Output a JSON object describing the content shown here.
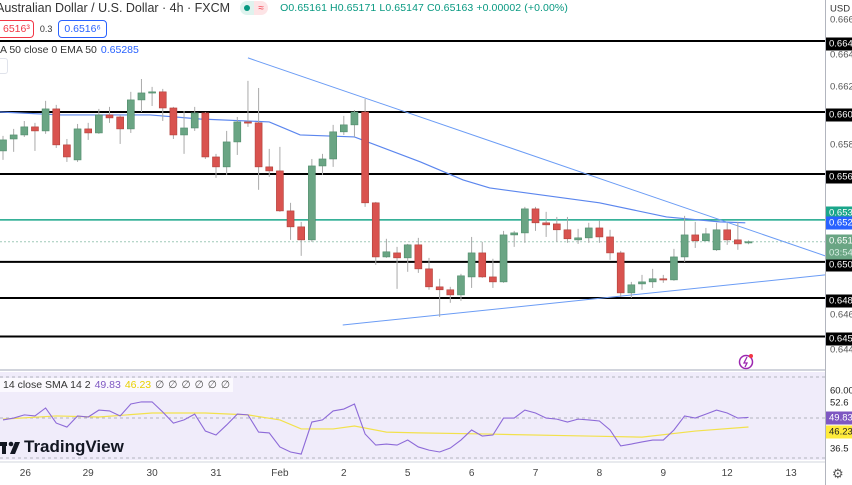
{
  "header": {
    "title": "Australian Dollar / U.S. Dollar · 4h · FXCM",
    "ohlc": "O0.65161 H0.65171 L0.65147 C0.65163 +0.00002 (+0.00%)",
    "status_dot_color": "#089981",
    "status_icon": "≈",
    "sell_price": "6516³",
    "spread": "0.3",
    "buy_price": "0.6516⁶"
  },
  "ema_legend": {
    "label": "A 50 close 0 EMA 50",
    "value": "0.65285"
  },
  "rsi_legend": {
    "label": "14 close SMA 14 2",
    "rsi": "49.83",
    "sma": "46.23",
    "empties": [
      "∅",
      "∅",
      "∅",
      "∅",
      "∅",
      "∅"
    ]
  },
  "logo": {
    "text": "TradingView"
  },
  "price_axis": {
    "currency": "USD",
    "ticks": [
      {
        "t": "0.666",
        "p": 0.66594
      },
      {
        "t": "0.664",
        "p": 0.66369
      },
      {
        "t": "0.662",
        "p": 0.66162
      },
      {
        "t": "0.658",
        "p": 0.65788
      },
      {
        "t": "0.646",
        "p": 0.64691
      },
      {
        "t": "0.644",
        "p": 0.64465
      }
    ],
    "levels": [
      {
        "t": "0.664",
        "p": 0.66458,
        "color": "#000000"
      },
      {
        "t": "0.660",
        "p": 0.66,
        "color": "#000000"
      },
      {
        "t": "0.656",
        "p": 0.656,
        "color": "#000000"
      },
      {
        "t": "0.650",
        "p": 0.65033,
        "color": "#000000"
      },
      {
        "t": "0.648",
        "p": 0.648,
        "color": "#000000"
      },
      {
        "t": "0.645",
        "p": 0.64552,
        "color": "#000000"
      },
      {
        "t": "0.653",
        "p": 0.65304,
        "color": "#1aa68a"
      }
    ],
    "ema_tag": {
      "t": "0.652",
      "p": 0.65285,
      "color": "#2962ff"
    },
    "last_tag": {
      "t": "0.651",
      "countdown": "03:54",
      "p": 0.65163,
      "color": "#6aa584"
    }
  },
  "rsi_axis": {
    "ticks": [
      {
        "t": "60.00",
        "v": 60
      },
      {
        "t": "52.6",
        "v": 55.2
      },
      {
        "t": "36.5",
        "v": 38
      }
    ],
    "rsi_tag": {
      "t": "49.83",
      "color": "#7e57c2"
    },
    "sma_tag": {
      "t": "46.23",
      "color": "#ffeb3b"
    }
  },
  "time_axis": [
    {
      "t": "26",
      "i": 2.1
    },
    {
      "t": "29",
      "i": 8
    },
    {
      "t": "30",
      "i": 14
    },
    {
      "t": "31",
      "i": 20
    },
    {
      "t": "Feb",
      "i": 26
    },
    {
      "t": "2",
      "i": 32
    },
    {
      "t": "5",
      "i": 38
    },
    {
      "t": "6",
      "i": 44
    },
    {
      "t": "7",
      "i": 50
    },
    {
      "t": "8",
      "i": 56
    },
    {
      "t": "9",
      "i": 62
    },
    {
      "t": "12",
      "i": 68
    },
    {
      "t": "13",
      "i": 74
    }
  ],
  "colors": {
    "up": "#6aa584",
    "down": "#d9534f",
    "ema": "#5b86ee",
    "trendline": "#6b9cf5",
    "rsi": "#8d6ad8",
    "rsi_sma": "#f2e14c"
  },
  "chart_data": {
    "type": "candlestick",
    "symbol": "AUDUSD",
    "timeframe": "4h",
    "ohlc": [
      [
        0.65749,
        0.65846,
        0.65691,
        0.6582
      ],
      [
        0.65826,
        0.65891,
        0.65743,
        0.65852
      ],
      [
        0.65852,
        0.65942,
        0.65839,
        0.65904
      ],
      [
        0.65904,
        0.6593,
        0.65749,
        0.65878
      ],
      [
        0.65878,
        0.66072,
        0.65859,
        0.6602
      ],
      [
        0.6602,
        0.66046,
        0.65768,
        0.65788
      ],
      [
        0.65788,
        0.65826,
        0.65678,
        0.6571
      ],
      [
        0.65691,
        0.65923,
        0.65678,
        0.65891
      ],
      [
        0.65891,
        0.6593,
        0.6582,
        0.65865
      ],
      [
        0.65865,
        0.6602,
        0.65859,
        0.65981
      ],
      [
        0.65981,
        0.66033,
        0.6593,
        0.65962
      ],
      [
        0.65968,
        0.65981,
        0.65794,
        0.65891
      ],
      [
        0.65891,
        0.6613,
        0.65865,
        0.66078
      ],
      [
        0.66078,
        0.66213,
        0.66,
        0.66123
      ],
      [
        0.66123,
        0.66162,
        0.66039,
        0.6613
      ],
      [
        0.6613,
        0.66149,
        0.65942,
        0.66026
      ],
      [
        0.66026,
        0.66033,
        0.65826,
        0.65852
      ],
      [
        0.65852,
        0.66007,
        0.6573,
        0.65897
      ],
      [
        0.65897,
        0.66033,
        0.65878,
        0.65994
      ],
      [
        0.65994,
        0.66,
        0.65697,
        0.6571
      ],
      [
        0.6571,
        0.6573,
        0.65575,
        0.65646
      ],
      [
        0.65646,
        0.65878,
        0.65594,
        0.65807
      ],
      [
        0.65807,
        0.65968,
        0.65723,
        0.65936
      ],
      [
        0.65936,
        0.66201,
        0.65904,
        0.6593
      ],
      [
        0.6593,
        0.66155,
        0.65498,
        0.65646
      ],
      [
        0.65646,
        0.65762,
        0.65581,
        0.6562
      ],
      [
        0.6562,
        0.65775,
        0.65356,
        0.65362
      ],
      [
        0.65362,
        0.65414,
        0.65175,
        0.65259
      ],
      [
        0.65259,
        0.65291,
        0.65072,
        0.65175
      ],
      [
        0.65175,
        0.65697,
        0.65162,
        0.65652
      ],
      [
        0.65652,
        0.6573,
        0.65594,
        0.65697
      ],
      [
        0.65697,
        0.65917,
        0.65646,
        0.65872
      ],
      [
        0.65872,
        0.65975,
        0.65852,
        0.65917
      ],
      [
        0.65917,
        0.66013,
        0.65839,
        0.66
      ],
      [
        0.66,
        0.66084,
        0.65388,
        0.65414
      ],
      [
        0.65414,
        0.6542,
        0.65014,
        0.65065
      ],
      [
        0.65065,
        0.65182,
        0.65059,
        0.65098
      ],
      [
        0.65091,
        0.6513,
        0.64859,
        0.65059
      ],
      [
        0.65059,
        0.65149,
        0.64969,
        0.65143
      ],
      [
        0.65143,
        0.65188,
        0.64962,
        0.64988
      ],
      [
        0.64988,
        0.65059,
        0.64853,
        0.64872
      ],
      [
        0.64872,
        0.64924,
        0.64678,
        0.64853
      ],
      [
        0.64853,
        0.64872,
        0.64769,
        0.6482
      ],
      [
        0.6482,
        0.64956,
        0.64782,
        0.64943
      ],
      [
        0.64936,
        0.65194,
        0.64865,
        0.65091
      ],
      [
        0.65091,
        0.65162,
        0.6493,
        0.64936
      ],
      [
        0.64936,
        0.65053,
        0.64865,
        0.64904
      ],
      [
        0.64904,
        0.65233,
        0.64898,
        0.65207
      ],
      [
        0.65207,
        0.65233,
        0.6513,
        0.6522
      ],
      [
        0.6522,
        0.65388,
        0.65156,
        0.65375
      ],
      [
        0.65375,
        0.65388,
        0.65233,
        0.65285
      ],
      [
        0.65285,
        0.65356,
        0.65194,
        0.65272
      ],
      [
        0.65278,
        0.65323,
        0.65162,
        0.6524
      ],
      [
        0.6524,
        0.65323,
        0.65156,
        0.65182
      ],
      [
        0.65175,
        0.65246,
        0.65149,
        0.65188
      ],
      [
        0.65188,
        0.65285,
        0.65156,
        0.65252
      ],
      [
        0.65252,
        0.65298,
        0.65156,
        0.65194
      ],
      [
        0.65194,
        0.6524,
        0.65046,
        0.65091
      ],
      [
        0.65091,
        0.65104,
        0.64807,
        0.64833
      ],
      [
        0.64833,
        0.64904,
        0.64801,
        0.64885
      ],
      [
        0.64891,
        0.64949,
        0.64853,
        0.64904
      ],
      [
        0.64904,
        0.64988,
        0.64865,
        0.64924
      ],
      [
        0.64924,
        0.64949,
        0.64898,
        0.64917
      ],
      [
        0.64917,
        0.65117,
        0.64911,
        0.65065
      ],
      [
        0.65065,
        0.6533,
        0.65033,
        0.65207
      ],
      [
        0.65207,
        0.65291,
        0.65123,
        0.65169
      ],
      [
        0.65169,
        0.65252,
        0.65169,
        0.65214
      ],
      [
        0.65111,
        0.65285,
        0.65104,
        0.6524
      ],
      [
        0.6524,
        0.65285,
        0.65143,
        0.65175
      ],
      [
        0.65175,
        0.65291,
        0.65111,
        0.65149
      ],
      [
        0.65161,
        0.65171,
        0.65147,
        0.65163
      ]
    ],
    "ema50": [
      [
        -0.3,
        0.66
      ],
      [
        5.4,
        0.65981
      ],
      [
        13.8,
        0.65981
      ],
      [
        18.5,
        0.65955
      ],
      [
        25,
        0.65936
      ],
      [
        27.9,
        0.65852
      ],
      [
        33,
        0.65839
      ],
      [
        39.2,
        0.65678
      ],
      [
        43.2,
        0.65562
      ],
      [
        45.7,
        0.6551
      ],
      [
        56,
        0.65414
      ],
      [
        62.3,
        0.65323
      ],
      [
        67.3,
        0.65291
      ],
      [
        69.7,
        0.65285
      ]
    ],
    "trendlines": [
      [
        [
          23,
          0.66349
        ],
        [
          77.2,
          0.65072
        ]
      ],
      [
        [
          31.9,
          0.64626
        ],
        [
          77.2,
          0.64949
        ]
      ]
    ],
    "rsi": [
      48.9,
      49.6,
      50.8,
      50.4,
      53.4,
      47.7,
      46.2,
      50.4,
      50.0,
      52.6,
      52.3,
      50.4,
      54.9,
      55.7,
      55.7,
      51.9,
      47.7,
      48.9,
      51.1,
      44.7,
      43.2,
      47.0,
      51.1,
      50.8,
      44.3,
      44.0,
      38.7,
      36.8,
      36.0,
      48.1,
      48.9,
      52.3,
      53.0,
      54.9,
      43.6,
      39.4,
      39.8,
      39.4,
      41.3,
      38.7,
      37.5,
      36.8,
      38.3,
      41.3,
      45.1,
      42.8,
      43.2,
      49.6,
      49.6,
      52.6,
      51.5,
      49.6,
      49.2,
      48.1,
      49.2,
      48.9,
      48.5,
      45.1,
      39.1,
      39.8,
      40.6,
      41.3,
      41.3,
      45.1,
      50.4,
      49.6,
      51.1,
      52.6,
      51.5,
      49.6,
      49.83
    ],
    "rsi_sma": [
      [
        0,
        49.2
      ],
      [
        5,
        50.4
      ],
      [
        9,
        50
      ],
      [
        14,
        51.5
      ],
      [
        19,
        51.5
      ],
      [
        23,
        50.8
      ],
      [
        26,
        48.9
      ],
      [
        28,
        45.5
      ],
      [
        31,
        45.5
      ],
      [
        33,
        46.6
      ],
      [
        36,
        44.3
      ],
      [
        39,
        44
      ],
      [
        45,
        43.6
      ],
      [
        55,
        42.8
      ],
      [
        60,
        42.4
      ],
      [
        65,
        44.7
      ],
      [
        70,
        46.23
      ]
    ]
  }
}
